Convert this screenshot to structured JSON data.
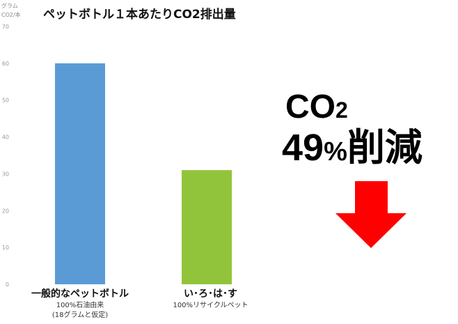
{
  "chart_data": {
    "type": "bar",
    "title": "ペットボトル１本あたりCO2排出量",
    "ylabel": "グラム CO2/本",
    "ylim": [
      0,
      70
    ],
    "yticks": [
      0,
      10,
      20,
      30,
      40,
      50,
      60,
      70
    ],
    "grid": false,
    "categories": [
      "一般的なペットボトル",
      "い･ろ･は･す"
    ],
    "category_sublabels": [
      "100%石油由来 (18グラムと仮定)",
      "100%リサイクルペット"
    ],
    "values": [
      60,
      31
    ],
    "colors": [
      "#5b9bd5",
      "#92c43b"
    ]
  },
  "callout": {
    "co2_main": "CO",
    "co2_sub": "2",
    "reduction_number": "49",
    "reduction_percent": "%",
    "reduction_word": "削減",
    "arrow_color": "#ff0000"
  }
}
